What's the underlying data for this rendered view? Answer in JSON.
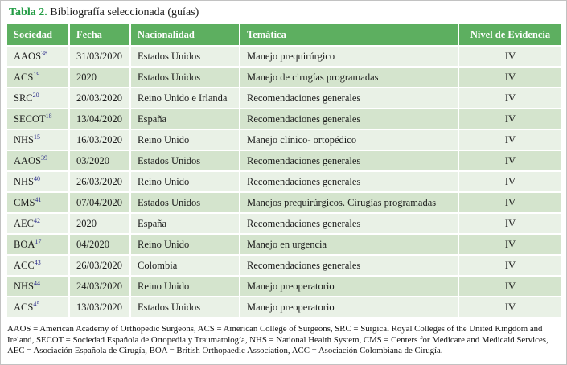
{
  "page": {
    "title_label": "Tabla 2.",
    "title_text": " Bibliografía seleccionada (guías)"
  },
  "table": {
    "headers": [
      "Sociedad",
      "Fecha",
      "Nacionalidad",
      "Temática",
      "Nivel de Evidencia"
    ],
    "rows": [
      {
        "sociedad": "AAOS",
        "ref": "38",
        "fecha": "31/03/2020",
        "nacionalidad": "Estados Unidos",
        "tematica": "Manejo prequirúrgico",
        "nivel": "IV"
      },
      {
        "sociedad": "ACS",
        "ref": "19",
        "fecha": "2020",
        "nacionalidad": "Estados Unidos",
        "tematica": "Manejo de cirugías programadas",
        "nivel": "IV"
      },
      {
        "sociedad": "SRC",
        "ref": "20",
        "fecha": "20/03/2020",
        "nacionalidad": "Reino Unido e Irlanda",
        "tematica": "Recomendaciones generales",
        "nivel": "IV"
      },
      {
        "sociedad": "SECOT",
        "ref": "18",
        "fecha": "13/04/2020",
        "nacionalidad": "España",
        "tematica": "Recomendaciones generales",
        "nivel": "IV"
      },
      {
        "sociedad": "NHS",
        "ref": "15",
        "fecha": "16/03/2020",
        "nacionalidad": "Reino Unido",
        "tematica": "Manejo clínico- ortopédico",
        "nivel": "IV"
      },
      {
        "sociedad": "AAOS",
        "ref": "39",
        "fecha": "03/2020",
        "nacionalidad": "Estados Unidos",
        "tematica": "Recomendaciones generales",
        "nivel": "IV"
      },
      {
        "sociedad": "NHS",
        "ref": "40",
        "fecha": "26/03/2020",
        "nacionalidad": "Reino Unido",
        "tematica": "Recomendaciones generales",
        "nivel": "IV"
      },
      {
        "sociedad": "CMS",
        "ref": "41",
        "fecha": "07/04/2020",
        "nacionalidad": "Estados Unidos",
        "tematica": "Manejos prequirúrgicos. Cirugías programadas",
        "nivel": "IV"
      },
      {
        "sociedad": "AEC",
        "ref": "42",
        "fecha": "2020",
        "nacionalidad": "España",
        "tematica": "Recomendaciones generales",
        "nivel": "IV"
      },
      {
        "sociedad": "BOA",
        "ref": "17",
        "fecha": "04/2020",
        "nacionalidad": "Reino Unido",
        "tematica": "Manejo en urgencia",
        "nivel": "IV"
      },
      {
        "sociedad": "ACC",
        "ref": "43",
        "fecha": "26/03/2020",
        "nacionalidad": "Colombia",
        "tematica": "Recomendaciones generales",
        "nivel": "IV"
      },
      {
        "sociedad": "NHS",
        "ref": "44",
        "fecha": "24/03/2020",
        "nacionalidad": "Reino Unido",
        "tematica": "Manejo preoperatorio",
        "nivel": "IV"
      },
      {
        "sociedad": "ACS",
        "ref": "45",
        "fecha": "13/03/2020",
        "nacionalidad": "Estados Unidos",
        "tematica": "Manejo preoperatorio",
        "nivel": "IV"
      }
    ]
  },
  "footnote": {
    "lines": [
      "AAOS = American Academy of Orthopedic Surgeons, ACS = American College of Surgeons, SRC = Surgical Royal Colleges of the United Kingdom and",
      "Ireland, SECOT = Sociedad Española de Ortopedia y Traumatología, NHS = National Health System, CMS = Centers for Medicare and Medicaid Services,",
      "AEC = Asociación Española de Cirugía, BOA = British Orthopaedic Association, ACC = Asociación Colombiana de Cirugía."
    ]
  },
  "colors": {
    "header_green": "#5daf60",
    "row_pale_green": "#e9f1e6",
    "row_medium_green": "#d4e4cd",
    "title_green": "#229c44",
    "superscript_blue": "#2c2c8a"
  }
}
